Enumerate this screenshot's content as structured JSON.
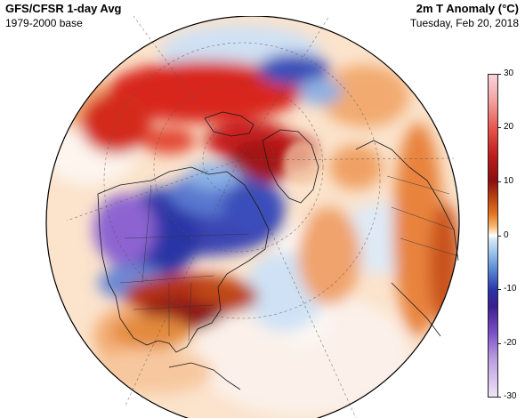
{
  "header": {
    "title_left": "GFS/CFSR 1-day Avg",
    "subtitle_left": "1979-2000 base",
    "title_right": "2m T Anomaly (°C)",
    "subtitle_right": "Tuesday, Feb 20, 2018"
  },
  "colorbar": {
    "ticks": [
      "30",
      "20",
      "10",
      "0",
      "-10",
      "-20",
      "-30"
    ],
    "range": [
      -30,
      30
    ],
    "colors": {
      "very_warm": "#fbd3dc",
      "warm": "#c01c1c",
      "mild": "#e2731f",
      "neutral": "#ffffff",
      "cool": "#5483d2",
      "cold": "#2a33a8",
      "very_cold": "#b99ae0"
    }
  },
  "map": {
    "projection": "orthographic",
    "center": "North Pole / North America",
    "gridlines": true
  }
}
